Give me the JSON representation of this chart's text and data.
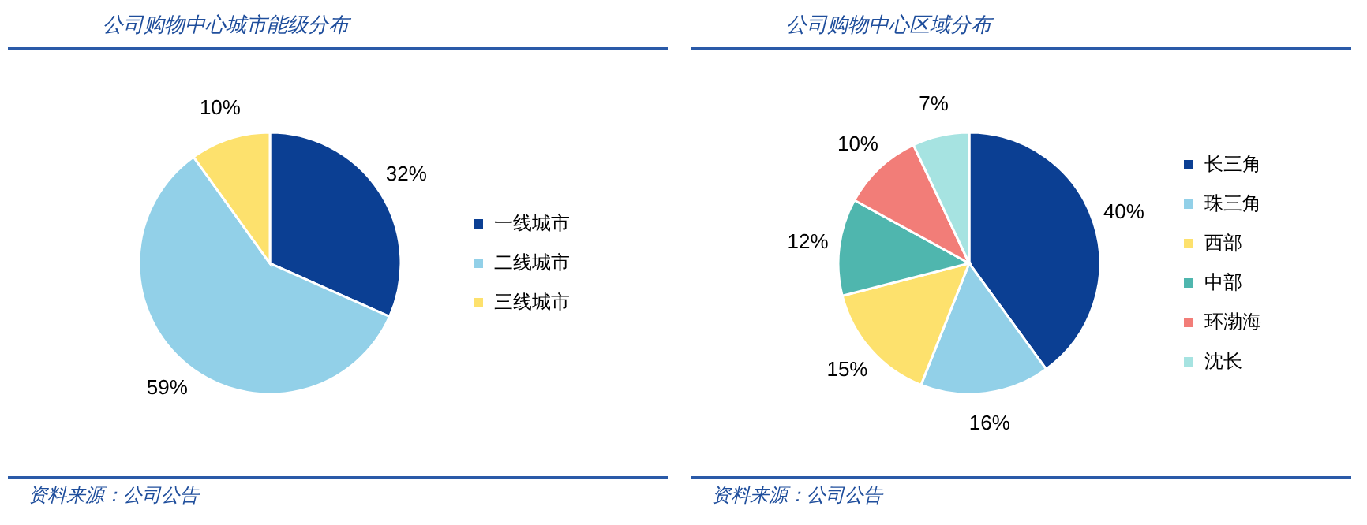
{
  "chart_data": [
    {
      "type": "pie",
      "title": "公司购物中心城市能级分布",
      "categories": [
        "一线城市",
        "二线城市",
        "三线城市"
      ],
      "values": [
        32,
        59,
        10
      ],
      "value_labels": [
        "32%",
        "59%",
        "10%"
      ],
      "colors": [
        "#0b3f93",
        "#92d0e8",
        "#fde16d"
      ],
      "legend": "right",
      "annotations": [
        "资料来源：公司公告"
      ]
    },
    {
      "type": "pie",
      "title": "公司购物中心区域分布",
      "categories": [
        "长三角",
        "珠三角",
        "西部",
        "中部",
        "环渤海",
        "沈长"
      ],
      "values": [
        40,
        16,
        15,
        12,
        10,
        7
      ],
      "value_labels": [
        "40%",
        "16%",
        "15%",
        "12%",
        "10%",
        "7%"
      ],
      "colors": [
        "#0b3f93",
        "#92d0e8",
        "#fde16d",
        "#4fb6ae",
        "#f27d78",
        "#a6e3e1"
      ],
      "legend": "right",
      "annotations": [
        "资料来源：公司公告"
      ]
    }
  ]
}
